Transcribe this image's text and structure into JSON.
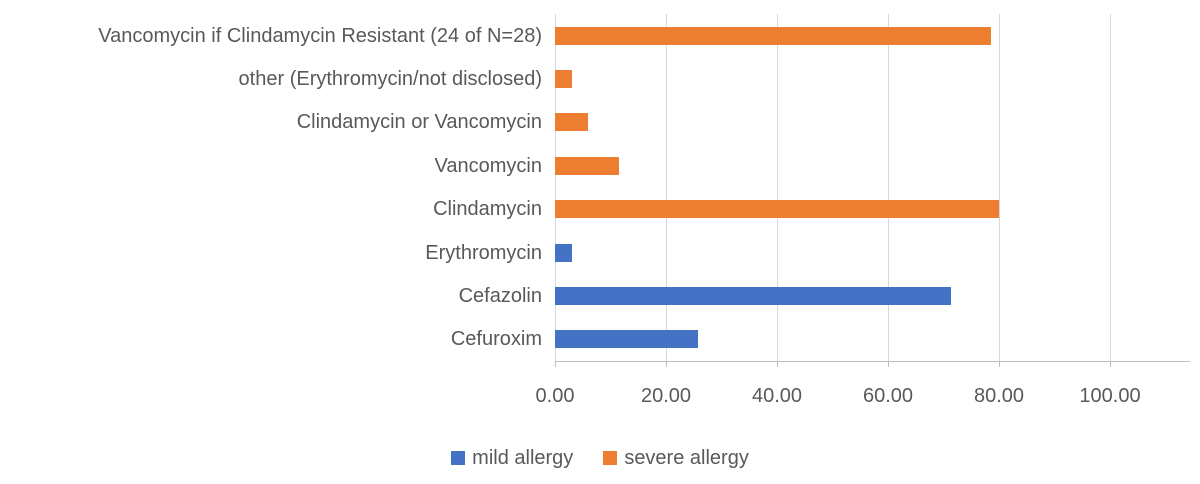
{
  "colors": {
    "mild": "#4472C4",
    "severe": "#ED7D31",
    "text": "#595959",
    "gridline": "#D9D9D9",
    "axis_line": "#BFBFBF",
    "background": "#FFFFFF"
  },
  "chart_data": {
    "type": "bar",
    "orientation": "horizontal",
    "title": "",
    "xlabel": "",
    "ylabel": "",
    "grid": "vertical-only",
    "legend_position": "bottom-center",
    "x_tick_values": [
      0,
      20,
      40,
      60,
      80,
      100
    ],
    "x_tick_labels": [
      "0.00",
      "20.00",
      "40.00",
      "60.00",
      "80.00",
      "100.00"
    ],
    "xlim": [
      0,
      114.4
    ],
    "categories": [
      "Vancomycin if Clindamycin Resistant (24 of N=28)",
      "other (Erythromycin/not disclosed)",
      "Clindamycin or Vancomycin",
      "Vancomycin",
      "Clindamycin",
      "Erythromycin",
      "Cefazolin",
      "Cefuroxim"
    ],
    "rows": [
      {
        "label": "Vancomycin if Clindamycin Resistant (24 of N=28)",
        "series": "severe allergy",
        "value": 78.6
      },
      {
        "label": "other (Erythromycin/not disclosed)",
        "series": "severe allergy",
        "value": 3.1
      },
      {
        "label": "Clindamycin or Vancomycin",
        "series": "severe allergy",
        "value": 5.9
      },
      {
        "label": "Vancomycin",
        "series": "severe allergy",
        "value": 11.5
      },
      {
        "label": "Clindamycin",
        "series": "severe allergy",
        "value": 80.0
      },
      {
        "label": "Erythromycin",
        "series": "mild allergy",
        "value": 3.0
      },
      {
        "label": "Cefazolin",
        "series": "mild allergy",
        "value": 71.4
      },
      {
        "label": "Cefuroxim",
        "series": "mild allergy",
        "value": 25.7
      }
    ],
    "series": [
      {
        "name": "mild allergy",
        "color": "#4472C4",
        "values": [
          null,
          null,
          null,
          null,
          null,
          3.0,
          71.4,
          25.7
        ]
      },
      {
        "name": "severe allergy",
        "color": "#ED7D31",
        "values": [
          78.6,
          3.1,
          5.9,
          11.5,
          80.0,
          null,
          null,
          null
        ]
      }
    ],
    "legend": [
      {
        "label": "mild allergy",
        "color": "#4472C4"
      },
      {
        "label": "severe allergy",
        "color": "#ED7D31"
      }
    ]
  }
}
